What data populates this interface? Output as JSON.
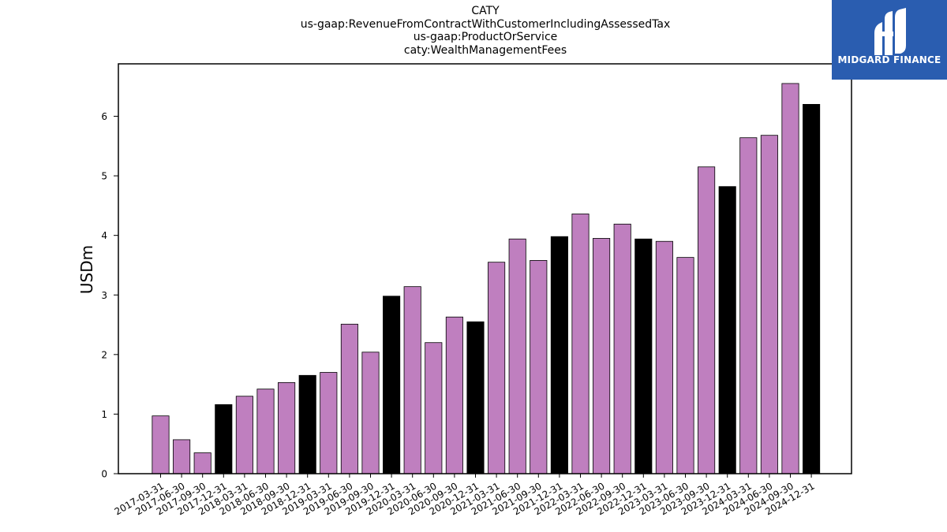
{
  "chart_data": {
    "type": "bar",
    "title_lines": [
      "CATY",
      "us-gaap:RevenueFromContractWithCustomerIncludingAssessedTax",
      "us-gaap:ProductOrService",
      "caty:WealthManagementFees"
    ],
    "ylabel": "USDm",
    "xlabel": "",
    "ylim": [
      0,
      6.88
    ],
    "yticks": [
      0,
      1,
      2,
      3,
      4,
      5,
      6
    ],
    "grid": false,
    "colors": {
      "quarter": "#bf7fbf",
      "year_end": "#000000",
      "edge": "#000000"
    },
    "categories": [
      "2017-03-31",
      "2017-06-30",
      "2017-09-30",
      "2017-12-31",
      "2018-03-31",
      "2018-06-30",
      "2018-09-30",
      "2018-12-31",
      "2019-03-31",
      "2019-06-30",
      "2019-09-30",
      "2019-12-31",
      "2020-03-31",
      "2020-06-30",
      "2020-09-30",
      "2020-12-31",
      "2021-03-31",
      "2021-06-30",
      "2021-09-30",
      "2021-12-31",
      "2022-03-31",
      "2022-06-30",
      "2022-09-30",
      "2022-12-31",
      "2023-03-31",
      "2023-06-30",
      "2023-09-30",
      "2023-12-31",
      "2024-03-31",
      "2024-06-30",
      "2024-09-30",
      "2024-12-31"
    ],
    "values": [
      0.97,
      0.57,
      0.35,
      1.16,
      1.3,
      1.42,
      1.53,
      1.65,
      1.7,
      2.51,
      2.04,
      2.98,
      3.14,
      2.2,
      2.63,
      2.55,
      3.55,
      3.94,
      3.58,
      3.98,
      4.36,
      3.95,
      4.19,
      3.94,
      3.9,
      3.63,
      5.15,
      4.82,
      5.64,
      5.68,
      6.55,
      6.2
    ]
  },
  "logo": {
    "text": "MIDGARD FINANCE"
  }
}
